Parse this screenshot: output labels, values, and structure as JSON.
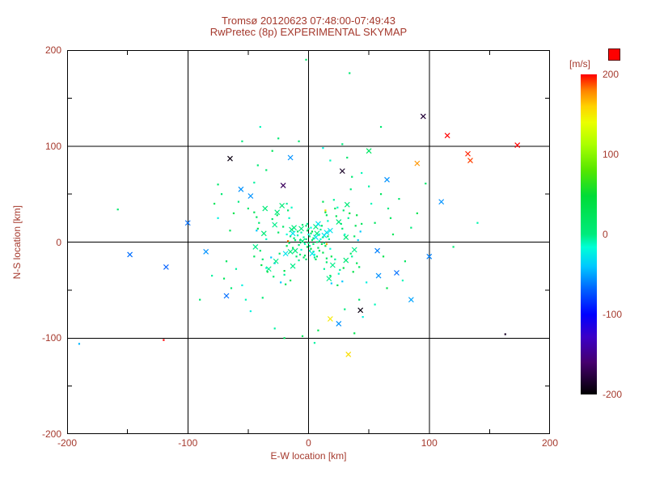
{
  "colors": {
    "text": "#a5392d",
    "axis": "#000000",
    "background": "#ffffff",
    "overflow_marker": "#ff0000"
  },
  "chart_data": {
    "type": "scatter",
    "title": "Tromsø 20120623 07:48:00-07:49:43",
    "subtitle": "RwPretec (8p) EXPERIMENTAL SKYMAP",
    "xlabel": "E-W location [km]",
    "ylabel": "N-S location [km]",
    "xlim": [
      -200,
      200
    ],
    "ylim": [
      -200,
      200
    ],
    "x_ticks": [
      -200,
      -100,
      0,
      100,
      200
    ],
    "y_ticks": [
      -200,
      -100,
      0,
      100,
      200
    ],
    "grid": true,
    "legend_position": "right-colorbar",
    "colorbar": {
      "label": "[m/s]",
      "ticks": [
        200,
        100,
        0,
        -100,
        -200
      ],
      "min": -200,
      "max": 200
    },
    "points": [
      [
        -2,
        3,
        5,
        "d"
      ],
      [
        1,
        -4,
        -8,
        "d"
      ],
      [
        3,
        2,
        12,
        "d"
      ],
      [
        -5,
        1,
        0,
        "x"
      ],
      [
        0,
        8,
        -15,
        "d"
      ],
      [
        2,
        -7,
        20,
        "d"
      ],
      [
        -8,
        -3,
        3,
        "d"
      ],
      [
        6,
        5,
        -25,
        "x"
      ],
      [
        -1,
        12,
        8,
        "d"
      ],
      [
        4,
        -10,
        -3,
        "d"
      ],
      [
        -12,
        4,
        5,
        "d"
      ],
      [
        9,
        1,
        -8,
        "d"
      ],
      [
        -3,
        -14,
        12,
        "d"
      ],
      [
        7,
        9,
        0,
        "x"
      ],
      [
        -6,
        -8,
        -15,
        "d"
      ],
      [
        11,
        -2,
        20,
        "d"
      ],
      [
        -15,
        6,
        3,
        "d"
      ],
      [
        13,
        7,
        -25,
        "x"
      ],
      [
        -9,
        11,
        8,
        "d"
      ],
      [
        5,
        -16,
        -3,
        "d"
      ],
      [
        0,
        -1,
        5,
        "d"
      ],
      [
        -4,
        5,
        -8,
        "d"
      ],
      [
        8,
        -6,
        12,
        "d"
      ],
      [
        -11,
        -9,
        0,
        "x"
      ],
      [
        2,
        15,
        -15,
        "d"
      ],
      [
        14,
        -4,
        20,
        "d"
      ],
      [
        -7,
        2,
        3,
        "d"
      ],
      [
        3,
        -12,
        -25,
        "x"
      ],
      [
        -16,
        -1,
        8,
        "d"
      ],
      [
        10,
        13,
        -3,
        "d"
      ],
      [
        -2,
        -18,
        5,
        "d"
      ],
      [
        17,
        3,
        -8,
        "d"
      ],
      [
        -13,
        -6,
        12,
        "d"
      ],
      [
        6,
        16,
        0,
        "x"
      ],
      [
        -18,
        8,
        -15,
        "d"
      ],
      [
        12,
        -11,
        20,
        "d"
      ],
      [
        -5,
        18,
        3,
        "d"
      ],
      [
        15,
        10,
        -25,
        "x"
      ],
      [
        -10,
        -15,
        8,
        "d"
      ],
      [
        1,
        6,
        -3,
        "d"
      ],
      [
        4,
        4,
        5,
        "d"
      ],
      [
        -6,
        10,
        -8,
        "d"
      ],
      [
        9,
        -9,
        12,
        "d"
      ],
      [
        -14,
        13,
        0,
        "x"
      ],
      [
        18,
        -7,
        -15,
        "d"
      ],
      [
        -1,
        -5,
        20,
        "d"
      ],
      [
        7,
        0,
        3,
        "d"
      ],
      [
        -19,
        -12,
        -25,
        "x"
      ],
      [
        11,
        17,
        8,
        "d"
      ],
      [
        -8,
        -19,
        -3,
        "d"
      ],
      [
        2,
        9,
        5,
        "d"
      ],
      [
        -3,
        -2,
        -8,
        "d"
      ],
      [
        16,
        6,
        12,
        "d"
      ],
      [
        -12,
        15,
        0,
        "x"
      ],
      [
        5,
        -13,
        -15,
        "d"
      ],
      [
        19,
        -15,
        20,
        "d"
      ],
      [
        -17,
        1,
        3,
        "d"
      ],
      [
        8,
        19,
        -25,
        "x"
      ],
      [
        -4,
        -16,
        8,
        "d"
      ],
      [
        13,
        -1,
        -3,
        "d"
      ],
      [
        0,
        14,
        5,
        "d"
      ],
      [
        -9,
        7,
        -8,
        "d"
      ],
      [
        6,
        -18,
        12,
        "d"
      ],
      [
        -15,
        -10,
        0,
        "x"
      ],
      [
        10,
        3,
        -15,
        "d"
      ],
      [
        3,
        11,
        20,
        "d"
      ],
      [
        -7,
        -13,
        3,
        "d"
      ],
      [
        18,
        12,
        -25,
        "x"
      ],
      [
        -2,
        17,
        8,
        "d"
      ],
      [
        12,
        5,
        -3,
        "d"
      ],
      [
        -11,
        2,
        5,
        "d"
      ],
      [
        1,
        -9,
        -8,
        "d"
      ],
      [
        15,
        -17,
        12,
        "d"
      ],
      [
        -6,
        14,
        0,
        "x"
      ],
      [
        9,
        8,
        -15,
        "d"
      ],
      [
        -18,
        -4,
        20,
        "d"
      ],
      [
        4,
        -2,
        3,
        "d"
      ],
      [
        -13,
        9,
        -25,
        "x"
      ],
      [
        7,
        -15,
        8,
        "d"
      ],
      [
        -1,
        19,
        -3,
        "d"
      ],
      [
        -25,
        10,
        10,
        "d"
      ],
      [
        22,
        -18,
        -5,
        "d"
      ],
      [
        31,
        5,
        2,
        "x"
      ],
      [
        -28,
        -22,
        -35,
        "d"
      ],
      [
        15,
        28,
        15,
        "d"
      ],
      [
        -35,
        3,
        -12,
        "d"
      ],
      [
        27,
        19,
        6,
        "d"
      ],
      [
        -20,
        -30,
        25,
        "d"
      ],
      [
        38,
        -8,
        -2,
        "x"
      ],
      [
        -42,
        14,
        18,
        "d"
      ],
      [
        18,
        -35,
        10,
        "d"
      ],
      [
        33,
        25,
        -5,
        "d"
      ],
      [
        -26,
        31,
        2,
        "x"
      ],
      [
        41,
        2,
        -35,
        "d"
      ],
      [
        -15,
        -40,
        15,
        "d"
      ],
      [
        24,
        36,
        -12,
        "d"
      ],
      [
        -38,
        -18,
        6,
        "d"
      ],
      [
        29,
        -27,
        25,
        "d"
      ],
      [
        -44,
        -5,
        -2,
        "x"
      ],
      [
        12,
        42,
        18,
        "d"
      ],
      [
        -30,
        24,
        10,
        "d"
      ],
      [
        36,
        -15,
        -5,
        "d"
      ],
      [
        -22,
        38,
        2,
        "x"
      ],
      [
        43,
        11,
        -35,
        "d"
      ],
      [
        -19,
        -44,
        15,
        "d"
      ],
      [
        25,
        -33,
        -12,
        "d"
      ],
      [
        -41,
        20,
        6,
        "d"
      ],
      [
        14,
        31,
        25,
        "d"
      ],
      [
        -33,
        -28,
        -2,
        "x"
      ],
      [
        39,
        17,
        18,
        "d"
      ],
      [
        -24,
        -12,
        10,
        "d"
      ],
      [
        21,
        44,
        -5,
        "d"
      ],
      [
        -37,
        9,
        2,
        "x"
      ],
      [
        28,
        -41,
        -35,
        "d"
      ],
      [
        -45,
        -15,
        15,
        "d"
      ],
      [
        16,
        22,
        -12,
        "d"
      ],
      [
        -29,
        -36,
        6,
        "d"
      ],
      [
        34,
        30,
        25,
        "d"
      ],
      [
        -13,
        -25,
        -2,
        "x"
      ],
      [
        40,
        -22,
        18,
        "d"
      ],
      [
        -21,
        16,
        10,
        "d"
      ],
      [
        26,
        -29,
        -5,
        "d"
      ],
      [
        -36,
        35,
        2,
        "x"
      ],
      [
        19,
        -43,
        -35,
        "d"
      ],
      [
        -43,
        26,
        15,
        "d"
      ],
      [
        30,
        8,
        -12,
        "d"
      ],
      [
        -17,
        33,
        6,
        "d"
      ],
      [
        37,
        -31,
        25,
        "d"
      ],
      [
        -27,
        -20,
        -2,
        "x"
      ],
      [
        23,
        27,
        18,
        "d"
      ],
      [
        -40,
        -9,
        10,
        "d"
      ],
      [
        13,
        -28,
        -5,
        "d"
      ],
      [
        32,
        39,
        2,
        "x"
      ],
      [
        -23,
        -42,
        -35,
        "d"
      ],
      [
        44,
        19,
        15,
        "d"
      ],
      [
        -16,
        25,
        -12,
        "d"
      ],
      [
        28,
        14,
        6,
        "d"
      ],
      [
        -34,
        -31,
        25,
        "d"
      ],
      [
        20,
        -24,
        -2,
        "x"
      ],
      [
        -45,
        31,
        18,
        "d"
      ],
      [
        35,
        -12,
        10,
        "d"
      ],
      [
        -18,
        40,
        -5,
        "d"
      ],
      [
        25,
        21,
        2,
        "x"
      ],
      [
        -31,
        -16,
        -35,
        "d"
      ],
      [
        42,
        -26,
        15,
        "d"
      ],
      [
        -14,
        36,
        -12,
        "d"
      ],
      [
        29,
        33,
        6,
        "d"
      ],
      [
        -39,
        -24,
        25,
        "d"
      ],
      [
        17,
        -38,
        -2,
        "x"
      ],
      [
        -26,
        28,
        18,
        "d"
      ],
      [
        38,
        6,
        10,
        "d"
      ],
      [
        -20,
        -34,
        -5,
        "d"
      ],
      [
        31,
        -19,
        2,
        "x"
      ],
      [
        -43,
        12,
        -35,
        "d"
      ],
      [
        22,
        35,
        15,
        "d"
      ],
      [
        -35,
        -27,
        -12,
        "d"
      ],
      [
        15,
        -21,
        6,
        "d"
      ],
      [
        40,
        28,
        25,
        "d"
      ],
      [
        -28,
        18,
        -2,
        "x"
      ],
      [
        24,
        -45,
        18,
        "d"
      ],
      [
        -50,
        35,
        8,
        "d"
      ],
      [
        48,
        -42,
        -20,
        "d"
      ],
      [
        55,
        20,
        14,
        "d"
      ],
      [
        -60,
        -28,
        -6,
        "d"
      ],
      [
        35,
        55,
        0,
        "d"
      ],
      [
        -48,
        48,
        -50,
        "x"
      ],
      [
        62,
        -15,
        22,
        "d"
      ],
      [
        -38,
        -58,
        4,
        "d"
      ],
      [
        52,
        40,
        -10,
        "d"
      ],
      [
        -65,
        12,
        16,
        "d"
      ],
      [
        42,
        -60,
        8,
        "d"
      ],
      [
        -55,
        -45,
        -20,
        "d"
      ],
      [
        68,
        25,
        14,
        "d"
      ],
      [
        -45,
        62,
        -6,
        "d"
      ],
      [
        30,
        -70,
        0,
        "d"
      ],
      [
        58,
        -35,
        -50,
        "x"
      ],
      [
        -62,
        30,
        22,
        "d"
      ],
      [
        36,
        68,
        4,
        "d"
      ],
      [
        -52,
        -60,
        -10,
        "d"
      ],
      [
        70,
        8,
        16,
        "d"
      ],
      [
        -35,
        75,
        8,
        "d"
      ],
      [
        45,
        -78,
        -20,
        "d"
      ],
      [
        -68,
        -20,
        14,
        "d"
      ],
      [
        50,
        58,
        -6,
        "d"
      ],
      [
        -58,
        42,
        0,
        "d"
      ],
      [
        25,
        -85,
        -50,
        "x"
      ],
      [
        65,
        -48,
        22,
        "d"
      ],
      [
        -42,
        80,
        4,
        "d"
      ],
      [
        55,
        -65,
        -10,
        "d"
      ],
      [
        -70,
        -38,
        16,
        "d"
      ],
      [
        32,
        88,
        8,
        "d"
      ],
      [
        -48,
        -72,
        -20,
        "d"
      ],
      [
        60,
        50,
        14,
        "d"
      ],
      [
        -28,
        -90,
        -6,
        "d"
      ],
      [
        66,
        35,
        0,
        "d"
      ],
      [
        -56,
        55,
        -50,
        "x"
      ],
      [
        38,
        -95,
        22,
        "d"
      ],
      [
        -64,
        -48,
        4,
        "d"
      ],
      [
        44,
        72,
        -10,
        "d"
      ],
      [
        -30,
        95,
        16,
        "d"
      ],
      [
        -8,
        105,
        8,
        "d"
      ],
      [
        12,
        98,
        -20,
        "d"
      ],
      [
        -20,
        -100,
        14,
        "d"
      ],
      [
        5,
        -105,
        -6,
        "d"
      ],
      [
        28,
        102,
        0,
        "d"
      ],
      [
        -15,
        88,
        -50,
        "x"
      ],
      [
        8,
        -92,
        22,
        "d"
      ],
      [
        -25,
        108,
        4,
        "d"
      ],
      [
        18,
        85,
        -10,
        "d"
      ],
      [
        -5,
        -98,
        16,
        "d"
      ],
      [
        75,
        45,
        8,
        "d"
      ],
      [
        -75,
        25,
        -20,
        "d"
      ],
      [
        80,
        -20,
        14,
        "d"
      ],
      [
        -80,
        -35,
        -6,
        "d"
      ],
      [
        85,
        15,
        0,
        "d"
      ],
      [
        -85,
        -10,
        -50,
        "x"
      ],
      [
        90,
        30,
        22,
        "d"
      ],
      [
        -72,
        50,
        4,
        "d"
      ],
      [
        78,
        -40,
        -10,
        "d"
      ],
      [
        -78,
        40,
        16,
        "d"
      ],
      [
        115,
        111,
        200,
        "x"
      ],
      [
        132,
        92,
        195,
        "x"
      ],
      [
        134,
        85,
        190,
        "x"
      ],
      [
        173,
        101,
        200,
        "x"
      ],
      [
        90,
        82,
        175,
        "x"
      ],
      [
        95,
        131,
        -185,
        "x"
      ],
      [
        -65,
        87,
        -195,
        "x"
      ],
      [
        43,
        -71,
        -195,
        "x"
      ],
      [
        18,
        -80,
        150,
        "x"
      ],
      [
        33,
        -117,
        155,
        "x"
      ],
      [
        -120,
        -102,
        200,
        "d"
      ],
      [
        -190,
        -106,
        -40,
        "d"
      ],
      [
        -148,
        -13,
        -60,
        "x"
      ],
      [
        -118,
        -26,
        -65,
        "x"
      ],
      [
        -68,
        -56,
        -60,
        "x"
      ],
      [
        73,
        -32,
        -60,
        "x"
      ],
      [
        57,
        -9,
        -55,
        "x"
      ],
      [
        163,
        -96,
        -190,
        "d"
      ],
      [
        -2,
        190,
        10,
        "d"
      ],
      [
        34,
        176,
        5,
        "d"
      ],
      [
        97,
        61,
        8,
        "d"
      ],
      [
        110,
        42,
        -50,
        "x"
      ],
      [
        -158,
        34,
        6,
        "d"
      ],
      [
        120,
        -5,
        4,
        "d"
      ],
      [
        140,
        20,
        -8,
        "d"
      ],
      [
        60,
        120,
        5,
        "d"
      ],
      [
        -40,
        120,
        -10,
        "d"
      ],
      [
        50,
        95,
        12,
        "x"
      ],
      [
        -55,
        105,
        0,
        "d"
      ],
      [
        85,
        -60,
        -45,
        "x"
      ],
      [
        100,
        -15,
        -55,
        "x"
      ],
      [
        -90,
        -60,
        5,
        "d"
      ],
      [
        -100,
        20,
        -60,
        "x"
      ],
      [
        65,
        65,
        -50,
        "x"
      ],
      [
        -75,
        60,
        8,
        "d"
      ],
      [
        28,
        74,
        -190,
        "x"
      ],
      [
        -21,
        59,
        -175,
        "x"
      ],
      [
        -17,
        1,
        185,
        "d"
      ],
      [
        15,
        -2,
        170,
        "d"
      ],
      [
        14,
        33,
        160,
        "d"
      ]
    ]
  }
}
